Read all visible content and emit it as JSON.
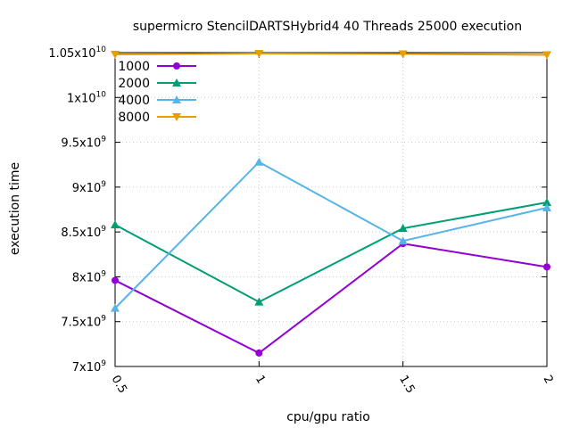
{
  "chart_data": {
    "type": "line",
    "title": "supermicro StencilDARTSHybrid4 40 Threads 25000 execution",
    "xlabel": "cpu/gpu ratio",
    "ylabel": "execution time",
    "x": [
      0.5,
      1,
      1.5,
      2
    ],
    "x_tick_labels": [
      "0.5",
      "1",
      "1.5",
      "2"
    ],
    "xlim": [
      0.5,
      2
    ],
    "ylim": [
      7000000000,
      10500000000
    ],
    "y_ticks": [
      {
        "value": 7000000000,
        "mantissa": "7x10",
        "exp": "9"
      },
      {
        "value": 7500000000,
        "mantissa": "7.5x10",
        "exp": "9"
      },
      {
        "value": 8000000000,
        "mantissa": "8x10",
        "exp": "9"
      },
      {
        "value": 8500000000,
        "mantissa": "8.5x10",
        "exp": "9"
      },
      {
        "value": 9000000000,
        "mantissa": "9x10",
        "exp": "9"
      },
      {
        "value": 9500000000,
        "mantissa": "9.5x10",
        "exp": "9"
      },
      {
        "value": 10000000000,
        "mantissa": "1x10",
        "exp": "10"
      },
      {
        "value": 10500000000,
        "mantissa": "1.05x10",
        "exp": "10"
      }
    ],
    "grid": true,
    "legend_position": "top-left",
    "series": [
      {
        "name": "1000",
        "color": "#9400d3",
        "marker": "circle",
        "values": [
          7960000000,
          7150000000,
          8370000000,
          8110000000
        ]
      },
      {
        "name": "2000",
        "color": "#009e73",
        "marker": "triangle-up",
        "values": [
          8580000000,
          7720000000,
          8540000000,
          8830000000
        ]
      },
      {
        "name": "4000",
        "color": "#56b4e9",
        "marker": "triangle-up",
        "values": [
          7650000000,
          9280000000,
          8400000000,
          8770000000
        ]
      },
      {
        "name": "8000",
        "color": "#e69f00",
        "marker": "triangle-down",
        "values": [
          10480000000,
          10490000000,
          10485000000,
          10475000000
        ]
      }
    ]
  }
}
